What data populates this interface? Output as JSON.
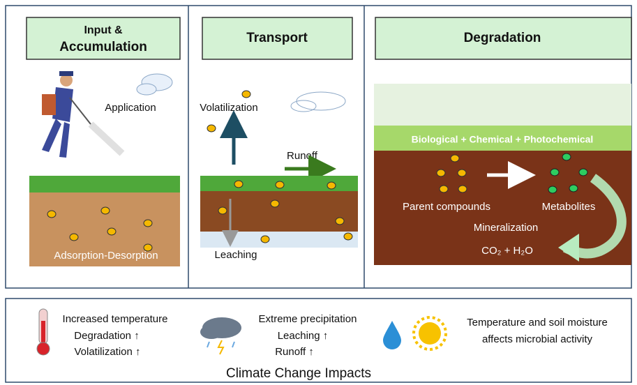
{
  "panels": {
    "input": {
      "title_line1": "Input &",
      "title_line2": "Accumulation",
      "application": "Application",
      "process": "Adsorption-Desorption"
    },
    "transport": {
      "title": "Transport",
      "volatilization": "Volatilization",
      "runoff": "Runoff",
      "leaching": "Leaching"
    },
    "degradation": {
      "title": "Degradation",
      "pathways": "Biological + Chemical + Photochemical",
      "parent": "Parent compounds",
      "metabolites": "Metabolites",
      "mineralization": "Mineralization",
      "products": "CO₂ + H₂O"
    }
  },
  "impacts": {
    "temperature": {
      "heading": "Increased temperature",
      "effects": [
        "Degradation ↑",
        "Volatilization ↑"
      ]
    },
    "precipitation": {
      "heading": "Extreme precipitation",
      "effects": [
        "Leaching ↑",
        "Runoff ↑"
      ]
    },
    "moisture": {
      "lines": [
        "Temperature and soil moisture",
        "affects microbial activity"
      ]
    },
    "title": "Climate Change Impacts"
  }
}
